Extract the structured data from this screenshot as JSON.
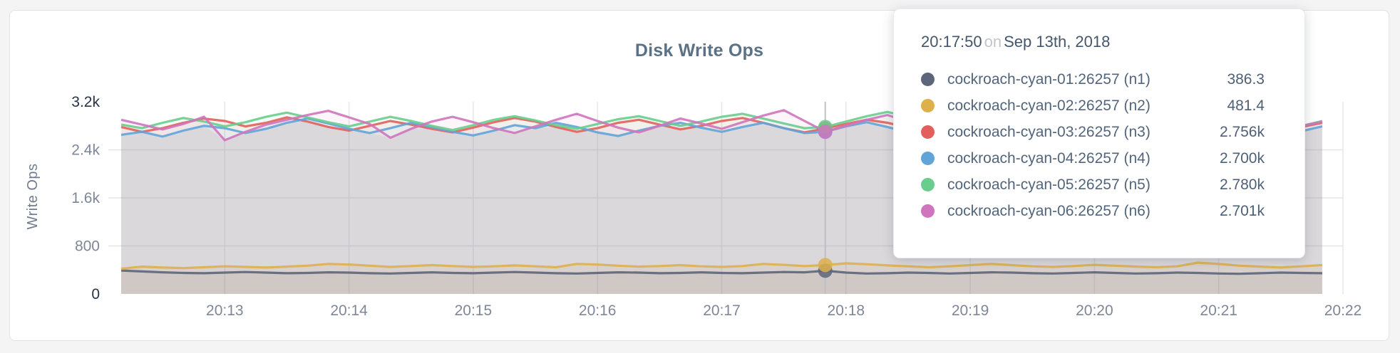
{
  "title": "Disk Write Ops",
  "colors": {
    "page_bg": "#f4f4f5",
    "card_bg": "#ffffff",
    "card_border": "#e3e3e5",
    "grid": "#e6e6e8",
    "crosshair": "#bcbfc4",
    "tick_regular": "#7e8798",
    "tick_emphasis": "#2b3444",
    "title_color": "#5b7186",
    "envelope_fill": "#7d8291"
  },
  "tooltip": {
    "time": "20:17:50",
    "separator": "on",
    "date": "Sep 13th, 2018",
    "rows": [
      {
        "label": "cockroach-cyan-01:26257 (n1)",
        "value": "386.3",
        "color": "#5c657a"
      },
      {
        "label": "cockroach-cyan-02:26257 (n2)",
        "value": "481.4",
        "color": "#ddb04c"
      },
      {
        "label": "cockroach-cyan-03:26257 (n3)",
        "value": "2.756k",
        "color": "#e2605b"
      },
      {
        "label": "cockroach-cyan-04:26257 (n4)",
        "value": "2.700k",
        "color": "#60a4d8"
      },
      {
        "label": "cockroach-cyan-05:26257 (n5)",
        "value": "2.780k",
        "color": "#69cd8d"
      },
      {
        "label": "cockroach-cyan-06:26257 (n6)",
        "value": "2.701k",
        "color": "#cf74bd"
      }
    ]
  },
  "chart_data": {
    "type": "line",
    "title": "Disk Write Ops",
    "ylabel": "Write Ops",
    "xlabel": "",
    "ylim": [
      0,
      3200
    ],
    "grid": true,
    "legend_position": "tooltip",
    "x_start": "20:12:10",
    "x_step_seconds": 10,
    "point_count": 59,
    "hover_index": 34,
    "hover_time": "20:17:50",
    "x_ticks": [
      "20:13",
      "20:14",
      "20:15",
      "20:16",
      "20:17",
      "20:18",
      "20:19",
      "20:20",
      "20:21",
      "20:22"
    ],
    "y_ticks": [
      {
        "value": 0,
        "label": "0",
        "emphasis": true
      },
      {
        "value": 800,
        "label": "800",
        "emphasis": false
      },
      {
        "value": 1600,
        "label": "1.6k",
        "emphasis": false
      },
      {
        "value": 2400,
        "label": "2.4k",
        "emphasis": false
      },
      {
        "value": 3200,
        "label": "3.2k",
        "emphasis": true
      }
    ],
    "series": [
      {
        "name": "cockroach-cyan-01:26257 (n1)",
        "color": "#5c657a",
        "band": "low",
        "area_opacity": 0.1,
        "values": [
          390,
          375,
          360,
          350,
          345,
          355,
          365,
          355,
          345,
          350,
          360,
          355,
          345,
          340,
          350,
          360,
          350,
          345,
          355,
          365,
          355,
          345,
          340,
          350,
          360,
          355,
          345,
          350,
          360,
          350,
          345,
          355,
          365,
          360,
          386.3,
          355,
          340,
          345,
          355,
          350,
          340,
          350,
          360,
          355,
          345,
          340,
          350,
          360,
          350,
          340,
          345,
          355,
          350,
          340,
          335,
          345,
          355,
          350,
          345
        ]
      },
      {
        "name": "cockroach-cyan-02:26257 (n2)",
        "color": "#ddb04c",
        "band": "low",
        "area_opacity": 0.12,
        "values": [
          420,
          455,
          440,
          430,
          445,
          460,
          450,
          440,
          455,
          470,
          500,
          490,
          470,
          450,
          465,
          480,
          465,
          450,
          460,
          475,
          460,
          445,
          500,
          490,
          470,
          455,
          465,
          480,
          460,
          450,
          465,
          500,
          485,
          465,
          481.4,
          510,
          495,
          475,
          460,
          445,
          460,
          480,
          500,
          480,
          460,
          450,
          465,
          485,
          470,
          455,
          445,
          460,
          520,
          500,
          470,
          455,
          440,
          460,
          480
        ]
      },
      {
        "name": "cockroach-cyan-03:26257 (n3)",
        "color": "#e2605b",
        "band": "high",
        "area_opacity": 0.07,
        "values": [
          2780,
          2700,
          2760,
          2850,
          2920,
          2880,
          2790,
          2850,
          2940,
          2870,
          2780,
          2720,
          2800,
          2880,
          2820,
          2750,
          2690,
          2770,
          2860,
          2930,
          2870,
          2780,
          2700,
          2760,
          2850,
          2900,
          2820,
          2740,
          2800,
          2880,
          2930,
          2850,
          2760,
          2690,
          2756,
          2830,
          2900,
          2850,
          2770,
          2700,
          2780,
          2870,
          2920,
          2840,
          2760,
          2700,
          2790,
          2880,
          2930,
          2850,
          2770,
          2710,
          2800,
          2890,
          2840,
          2760,
          2700,
          2780,
          2850
        ]
      },
      {
        "name": "cockroach-cyan-04:26257 (n4)",
        "color": "#60a4d8",
        "band": "high",
        "area_opacity": 0.07,
        "values": [
          2650,
          2700,
          2620,
          2720,
          2800,
          2760,
          2680,
          2750,
          2850,
          2920,
          2840,
          2750,
          2680,
          2760,
          2850,
          2780,
          2700,
          2640,
          2720,
          2810,
          2760,
          2850,
          2780,
          2690,
          2630,
          2720,
          2800,
          2850,
          2770,
          2700,
          2780,
          2850,
          2760,
          2680,
          2700,
          2790,
          2860,
          2780,
          2690,
          2620,
          2700,
          2790,
          2850,
          2780,
          2700,
          2640,
          2720,
          2800,
          2860,
          2780,
          2700,
          2650,
          2730,
          2820,
          2770,
          2690,
          2630,
          2710,
          2790
        ]
      },
      {
        "name": "cockroach-cyan-05:26257 (n5)",
        "color": "#69cd8d",
        "band": "high",
        "area_opacity": 0.07,
        "values": [
          2820,
          2760,
          2850,
          2930,
          2870,
          2790,
          2860,
          2950,
          3020,
          2940,
          2860,
          2790,
          2870,
          2950,
          2880,
          2800,
          2730,
          2810,
          2900,
          2960,
          2890,
          2810,
          2750,
          2830,
          2910,
          2960,
          2880,
          2800,
          2870,
          2950,
          3000,
          2920,
          2840,
          2760,
          2780,
          2870,
          2960,
          3030,
          2950,
          2860,
          2780,
          2860,
          2940,
          2870,
          2790,
          2730,
          2810,
          2900,
          2950,
          2870,
          2790,
          2740,
          2820,
          2900,
          2860,
          2780,
          2720,
          2800,
          2880
        ]
      },
      {
        "name": "cockroach-cyan-06:26257 (n6)",
        "color": "#cf74bd",
        "band": "high",
        "area_opacity": 0.07,
        "values": [
          2900,
          2820,
          2740,
          2830,
          2950,
          2560,
          2700,
          2820,
          2900,
          2980,
          3050,
          2940,
          2830,
          2600,
          2750,
          2870,
          2950,
          2860,
          2760,
          2680,
          2790,
          2900,
          3000,
          2880,
          2770,
          2690,
          2800,
          2920,
          2840,
          2750,
          2860,
          2970,
          3060,
          2880,
          2701,
          2800,
          2900,
          2980,
          2870,
          2760,
          2690,
          2790,
          2890,
          2960,
          2850,
          2750,
          2680,
          2780,
          2890,
          2940,
          2840,
          2750,
          2830,
          2920,
          2860,
          2770,
          2700,
          2790,
          2870
        ]
      }
    ]
  }
}
